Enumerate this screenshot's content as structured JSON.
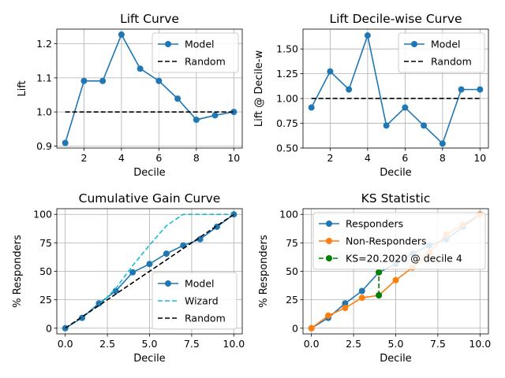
{
  "figure_title": "",
  "chart_data": [
    {
      "id": "lift",
      "type": "line",
      "title": "Lift Curve",
      "xlabel": "Decile",
      "ylabel": "Lift",
      "xlim": [
        0.55,
        10.45
      ],
      "ylim": [
        0.894,
        1.243
      ],
      "xticks": [
        2,
        4,
        6,
        8,
        10
      ],
      "xtick_labels": [
        "2",
        "4",
        "6",
        "8",
        "10"
      ],
      "yticks": [
        0.9,
        1.0,
        1.1,
        1.2
      ],
      "ytick_labels": [
        "0.9",
        "1.0",
        "1.1",
        "1.2"
      ],
      "grid": true,
      "legend_position": "upper right",
      "series": [
        {
          "name": "Model",
          "style": "solid-marker",
          "color": "#1f77b4",
          "x": [
            1,
            2,
            3,
            4,
            5,
            6,
            7,
            8,
            9,
            10
          ],
          "y": [
            0.909,
            1.091,
            1.091,
            1.227,
            1.127,
            1.091,
            1.039,
            0.977,
            0.99,
            1.0
          ]
        },
        {
          "name": "Random",
          "style": "dashed",
          "color": "#000000",
          "x": [
            1,
            10
          ],
          "y": [
            1.0,
            1.0
          ]
        }
      ]
    },
    {
      "id": "lift-decile",
      "type": "line",
      "title": "Lift Decile-wise Curve",
      "xlabel": "Decile",
      "ylabel": "Lift @ Decile-w",
      "xlim": [
        0.55,
        10.45
      ],
      "ylim": [
        0.5,
        1.7
      ],
      "xticks": [
        2,
        4,
        6,
        8,
        10
      ],
      "xtick_labels": [
        "2",
        "4",
        "6",
        "8",
        "10"
      ],
      "yticks": [
        0.5,
        0.75,
        1.0,
        1.25,
        1.5
      ],
      "ytick_labels": [
        "0.50",
        "0.75",
        "1.00",
        "1.25",
        "1.50"
      ],
      "grid": true,
      "legend_position": "upper right",
      "series": [
        {
          "name": "Model",
          "style": "solid-marker",
          "color": "#1f77b4",
          "x": [
            1,
            2,
            3,
            4,
            5,
            6,
            7,
            8,
            9,
            10
          ],
          "y": [
            0.909,
            1.273,
            1.091,
            1.636,
            0.727,
            0.909,
            0.727,
            0.545,
            1.091,
            1.091
          ]
        },
        {
          "name": "Random",
          "style": "dashed",
          "color": "#000000",
          "x": [
            1,
            10
          ],
          "y": [
            1.0,
            1.0
          ]
        }
      ]
    },
    {
      "id": "gain",
      "type": "line",
      "title": "Cumulative Gain Curve",
      "xlabel": "Decile",
      "ylabel": "% Responders",
      "xlim": [
        -0.5,
        10.5
      ],
      "ylim": [
        -5,
        105
      ],
      "xticks": [
        0,
        2.5,
        5,
        7.5,
        10
      ],
      "xtick_labels": [
        "0.0",
        "2.5",
        "5.0",
        "7.5",
        "10.0"
      ],
      "yticks": [
        0,
        25,
        50,
        75,
        100
      ],
      "ytick_labels": [
        "0",
        "25",
        "50",
        "75",
        "100"
      ],
      "grid": true,
      "legend_position": "lower right",
      "series": [
        {
          "name": "Model",
          "style": "solid-marker",
          "color": "#1f77b4",
          "x": [
            0,
            1,
            2,
            3,
            4,
            5,
            6,
            7,
            8,
            9,
            10
          ],
          "y": [
            0,
            9.1,
            21.8,
            32.7,
            49.1,
            56.4,
            65.5,
            72.7,
            78.2,
            89.1,
            100
          ]
        },
        {
          "name": "Wizard",
          "style": "dashed",
          "color": "#17becf",
          "x": [
            0,
            1,
            2,
            3,
            4,
            5,
            6,
            7,
            8,
            9,
            10
          ],
          "y": [
            0,
            10,
            20,
            35,
            55,
            73,
            90,
            100,
            100,
            100,
            100
          ]
        },
        {
          "name": "Random",
          "style": "dashed",
          "color": "#000000",
          "x": [
            0,
            10
          ],
          "y": [
            0,
            100
          ]
        }
      ]
    },
    {
      "id": "ks",
      "type": "line",
      "title": "KS Statistic",
      "xlabel": "Decile",
      "ylabel": "% Responders",
      "xlim": [
        -0.5,
        10.5
      ],
      "ylim": [
        -5,
        105
      ],
      "xticks": [
        0,
        2.5,
        5,
        7.5,
        10
      ],
      "xtick_labels": [
        "0.0",
        "2.5",
        "5.0",
        "7.5",
        "10.0"
      ],
      "yticks": [
        0,
        25,
        50,
        75,
        100
      ],
      "ytick_labels": [
        "0",
        "25",
        "50",
        "75",
        "100"
      ],
      "grid": true,
      "legend_position": "upper left",
      "series": [
        {
          "name": "Responders",
          "style": "solid-marker",
          "color": "#1f77b4",
          "x": [
            0,
            1,
            2,
            3,
            4,
            5,
            6,
            7,
            8,
            9,
            10
          ],
          "y": [
            0,
            9.1,
            21.8,
            32.7,
            49.1,
            56.4,
            65.5,
            72.7,
            78.2,
            89.1,
            100
          ]
        },
        {
          "name": "Non-Responders",
          "style": "solid-marker",
          "color": "#ff7f0e",
          "x": [
            0,
            1,
            2,
            3,
            4,
            5,
            6,
            7,
            8,
            9,
            10
          ],
          "y": [
            0,
            11.1,
            17.8,
            26.7,
            28.9,
            42.2,
            53.3,
            66.7,
            82.2,
            91.1,
            100
          ]
        },
        {
          "name": "KS=20.2020 @ decile 4",
          "style": "dashed-marker",
          "color": "#008000",
          "x": [
            4,
            4
          ],
          "y": [
            28.9,
            49.1
          ]
        }
      ]
    }
  ]
}
